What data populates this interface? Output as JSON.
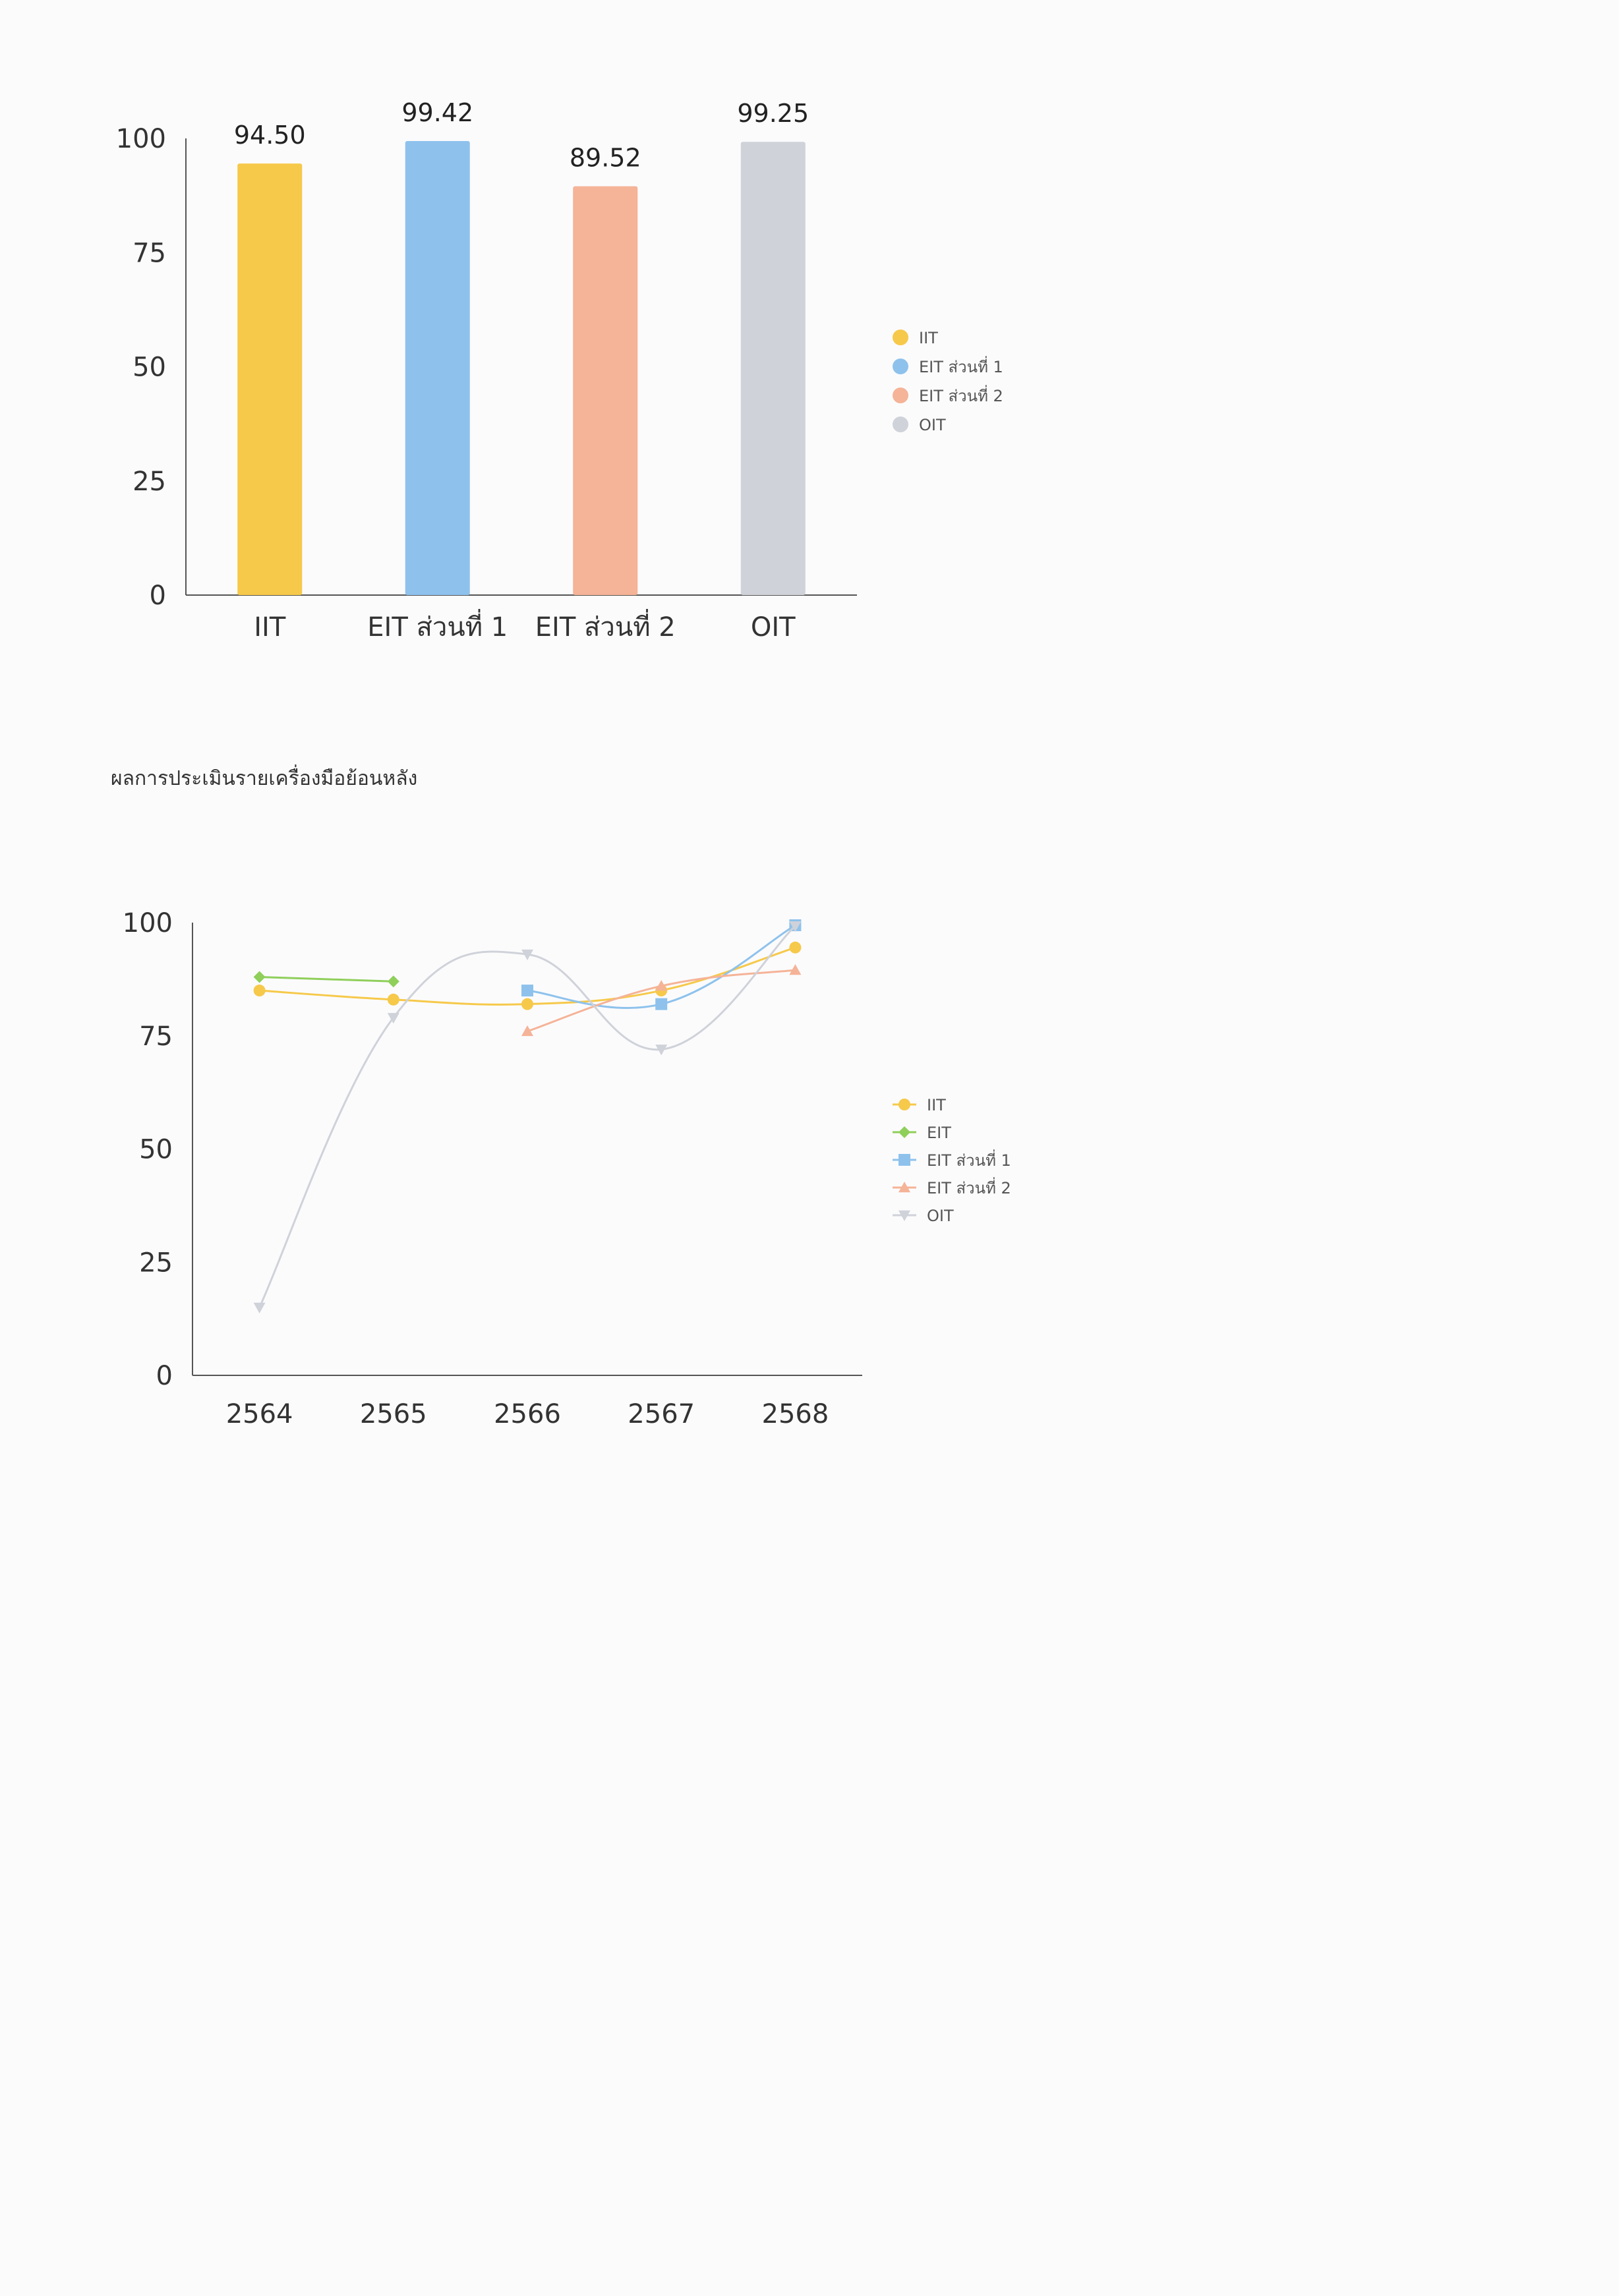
{
  "section_title": "ผลการประเมินรายเครื่องมือย้อนหลัง",
  "chart_data": [
    {
      "type": "bar",
      "categories": [
        "IIT",
        "EIT ส่วนที่ 1",
        "EIT ส่วนที่ 2",
        "OIT"
      ],
      "values": [
        94.5,
        99.42,
        89.52,
        99.25
      ],
      "value_labels": [
        "94.50",
        "99.42",
        "89.52",
        "99.25"
      ],
      "colors": [
        "#f6c94a",
        "#8ec2ec",
        "#f5b397",
        "#cfd2d9"
      ],
      "ylim": [
        0,
        100
      ],
      "yticks": [
        0,
        25,
        50,
        75,
        100
      ],
      "legend": {
        "position": "right",
        "entries": [
          "IIT",
          "EIT ส่วนที่ 1",
          "EIT ส่วนที่ 2",
          "OIT"
        ]
      }
    },
    {
      "type": "line",
      "x": [
        "2564",
        "2565",
        "2566",
        "2567",
        "2568"
      ],
      "ylim": [
        0,
        100
      ],
      "yticks": [
        0,
        25,
        50,
        75,
        100
      ],
      "series": [
        {
          "name": "IIT",
          "color": "#f6c94a",
          "marker": "circle",
          "values": [
            85,
            83,
            82,
            85,
            94.5
          ]
        },
        {
          "name": "EIT",
          "color": "#8fcf5a",
          "marker": "diamond",
          "values": [
            88,
            87,
            null,
            null,
            null
          ]
        },
        {
          "name": "EIT ส่วนที่ 1",
          "color": "#8ec2ec",
          "marker": "square",
          "values": [
            null,
            null,
            85,
            82,
            99.42
          ]
        },
        {
          "name": "EIT ส่วนที่ 2",
          "color": "#f5b397",
          "marker": "triangle-up",
          "values": [
            null,
            null,
            76,
            86,
            89.52
          ]
        },
        {
          "name": "OIT",
          "color": "#cfd2d9",
          "marker": "triangle-down",
          "values": [
            15,
            79,
            93,
            72,
            99.25
          ]
        }
      ],
      "legend": {
        "position": "right",
        "entries": [
          "IIT",
          "EIT",
          "EIT ส่วนที่ 1",
          "EIT ส่วนที่ 2",
          "OIT"
        ]
      }
    }
  ]
}
